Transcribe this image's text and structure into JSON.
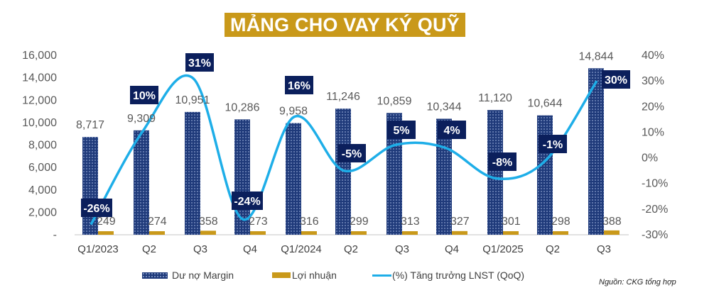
{
  "title": "MẢNG CHO VAY KÝ QUỸ",
  "source": "Nguồn: CKG tổng hợp",
  "colors": {
    "margin_bar": "#1f3a7a",
    "profit_bar": "#c9991a",
    "growth_line": "#1eaee8",
    "label_box": "#0b1f5c",
    "title_bg": "#c9991a"
  },
  "legend": [
    {
      "label": "Dư nợ Margin",
      "icon": "dotted-navy-bar"
    },
    {
      "label": "Lợi nhuận",
      "icon": "gold-bar"
    },
    {
      "label": "(%) Tăng trưởng LNST (QoQ)",
      "icon": "blue-line"
    }
  ],
  "chart_data": {
    "type": "bar",
    "title": "MẢNG CHO VAY KÝ QUỸ",
    "categories": [
      "Q1/2023",
      "Q2",
      "Q3",
      "Q4",
      "Q1/2024",
      "Q2",
      "Q3",
      "Q4",
      "Q1/2025",
      "Q2",
      "Q3"
    ],
    "series": [
      {
        "name": "Dư nợ Margin",
        "type": "bar",
        "axis": "left",
        "values": [
          8717,
          9309,
          10951,
          10286,
          9958,
          11246,
          10859,
          10344,
          11120,
          10644,
          14844
        ],
        "labels": [
          "8,717",
          "9,309",
          "10,951",
          "10,286",
          "9,958",
          "11,246",
          "10,859",
          "10,344",
          "11,120",
          "10,644",
          "14,844"
        ]
      },
      {
        "name": "Lợi nhuận",
        "type": "bar",
        "axis": "left",
        "values": [
          249,
          274,
          358,
          273,
          316,
          299,
          313,
          327,
          301,
          298,
          388
        ],
        "labels": [
          "249",
          "274",
          "358",
          "273",
          "316",
          "299",
          "313",
          "327",
          "301",
          "298",
          "388"
        ]
      },
      {
        "name": "(%) Tăng trưởng LNST (QoQ)",
        "type": "line",
        "axis": "right",
        "values": [
          -26,
          10,
          31,
          -24,
          16,
          -5,
          5,
          4,
          -8,
          -1,
          30
        ],
        "labels": [
          "-26%",
          "10%",
          "31%",
          "-24%",
          "16%",
          "-5%",
          "5%",
          "4%",
          "-8%",
          "-1%",
          "30%"
        ]
      }
    ],
    "left_axis": {
      "ticks": [
        "-",
        "2,000",
        "4,000",
        "6,000",
        "8,000",
        "10,000",
        "12,000",
        "14,000",
        "16,000"
      ],
      "ylim": [
        0,
        16000
      ]
    },
    "right_axis": {
      "ticks": [
        "-30%",
        "-20%",
        "-10%",
        "0%",
        "10%",
        "20%",
        "30%",
        "40%"
      ],
      "ylim": [
        -30,
        40
      ]
    },
    "xlabel": "",
    "ylabel": "",
    "grid": false,
    "legend_position": "bottom"
  }
}
